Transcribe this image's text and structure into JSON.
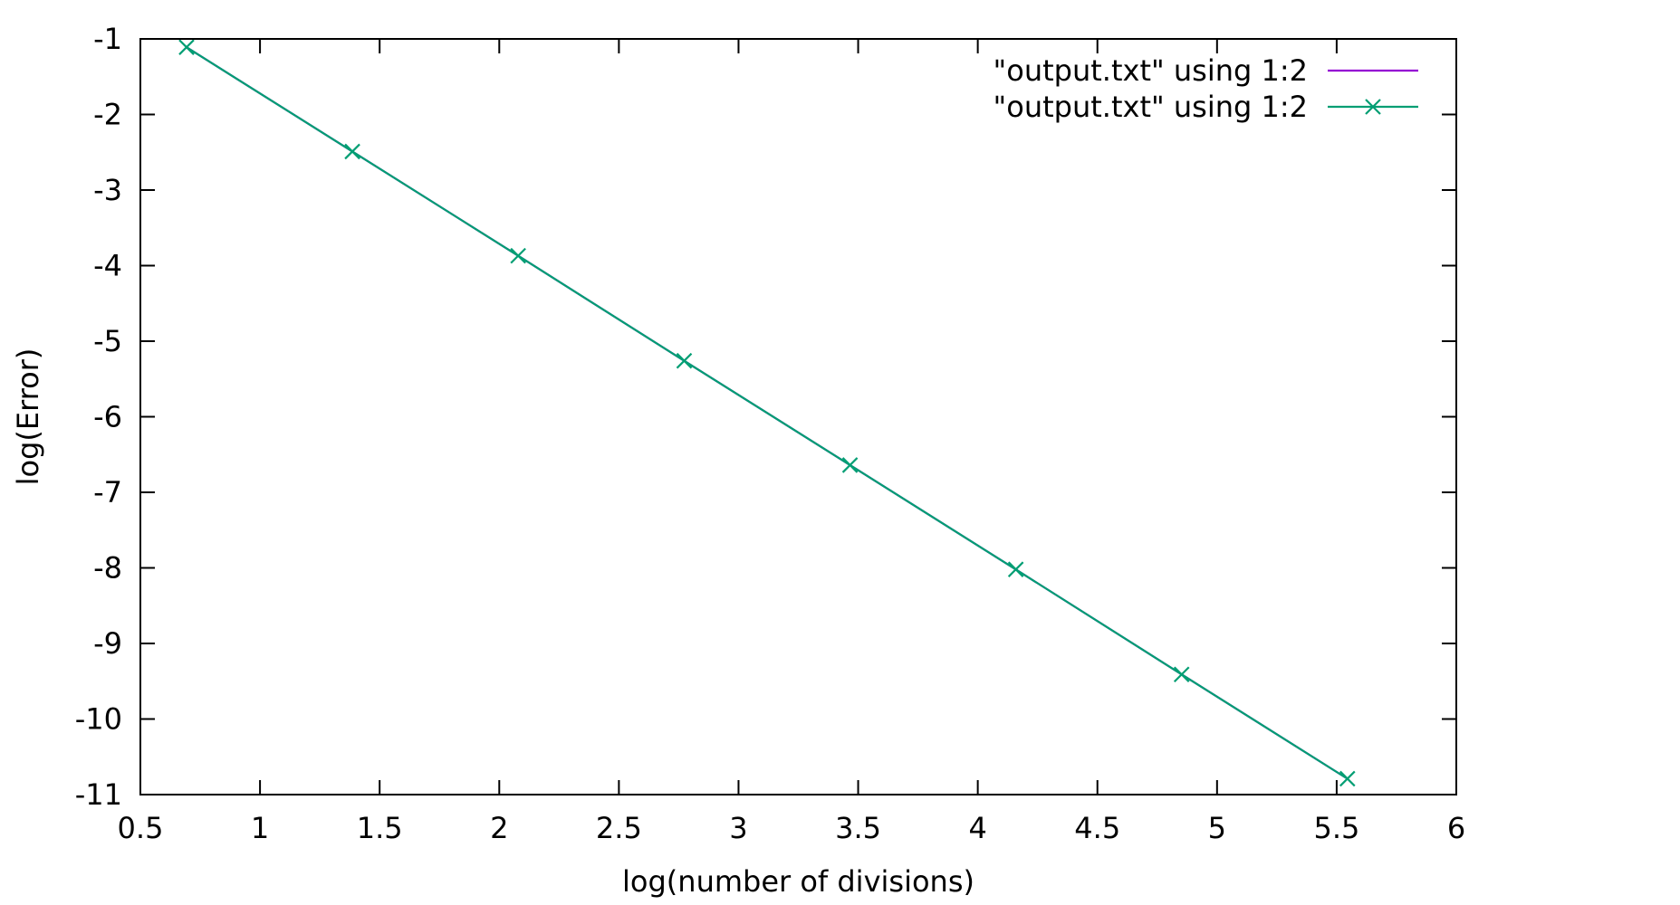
{
  "chart_data": {
    "type": "line",
    "xlabel": "log(number of divisions)",
    "ylabel": "log(Error)",
    "xlim": [
      0.5,
      6
    ],
    "ylim": [
      -11,
      -1
    ],
    "x_ticks": [
      0.5,
      1,
      1.5,
      2,
      2.5,
      3,
      3.5,
      4,
      4.5,
      5,
      5.5,
      6
    ],
    "x_tick_labels": [
      "0.5",
      "1",
      "1.5",
      "2",
      "2.5",
      "3",
      "3.5",
      "4",
      "4.5",
      "5",
      "5.5",
      "6"
    ],
    "y_ticks": [
      -1,
      -2,
      -3,
      -4,
      -5,
      -6,
      -7,
      -8,
      -9,
      -10,
      -11
    ],
    "y_tick_labels": [
      "-1",
      "-2",
      "-3",
      "-4",
      "-5",
      "-6",
      "-7",
      "-8",
      "-9",
      "-10",
      "-11"
    ],
    "grid": false,
    "legend_position": "top-right",
    "series": [
      {
        "name": "\"output.txt\" using 1:2",
        "style": "line",
        "color": "#9400d3",
        "x": [
          0.693,
          1.386,
          2.079,
          2.773,
          3.466,
          4.159,
          4.852,
          5.545
        ],
        "y": [
          -1.11,
          -2.49,
          -3.87,
          -5.26,
          -6.64,
          -8.02,
          -9.41,
          -10.79
        ]
      },
      {
        "name": "\"output.txt\" using 1:2",
        "style": "linespoints",
        "marker": "x",
        "color": "#009e73",
        "x": [
          0.693,
          1.386,
          2.079,
          2.773,
          3.466,
          4.159,
          4.852,
          5.545
        ],
        "y": [
          -1.11,
          -2.49,
          -3.87,
          -5.26,
          -6.64,
          -8.02,
          -9.41,
          -10.79
        ]
      }
    ]
  }
}
